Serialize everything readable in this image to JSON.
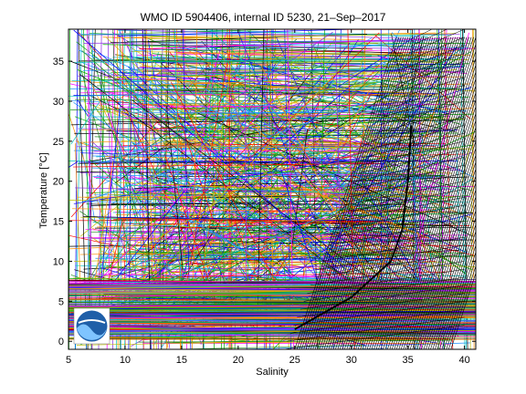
{
  "chart_data": {
    "type": "line",
    "title": "WMO ID 5904406, internal ID 5230, 21–Sep–2017",
    "xlabel": "Salinity",
    "ylabel": "Temperature [°C]",
    "xlim": [
      5,
      41
    ],
    "ylim": [
      -1,
      39
    ],
    "xticks": [
      5,
      10,
      15,
      20,
      25,
      30,
      35,
      40
    ],
    "yticks": [
      0,
      5,
      10,
      15,
      20,
      25,
      30,
      35
    ],
    "grid": false,
    "legend": "none",
    "logo": "noaa-logo",
    "series": [
      {
        "color": "#000000",
        "x": [
          25.0,
          30.0,
          33.5,
          34.5,
          35.0,
          35.3
        ],
        "y": [
          1.5,
          5.5,
          10.0,
          14.0,
          20.0,
          27.0
        ]
      }
    ],
    "colors": {
      "highlight": "#000000",
      "palette": [
        "#0000ff",
        "#ff0000",
        "#00aa00",
        "#ff00ff",
        "#00bfbf",
        "#bfbf00",
        "#ff8c00",
        "#8a2be2",
        "#000000",
        "#1e90ff",
        "#228b22"
      ]
    }
  }
}
